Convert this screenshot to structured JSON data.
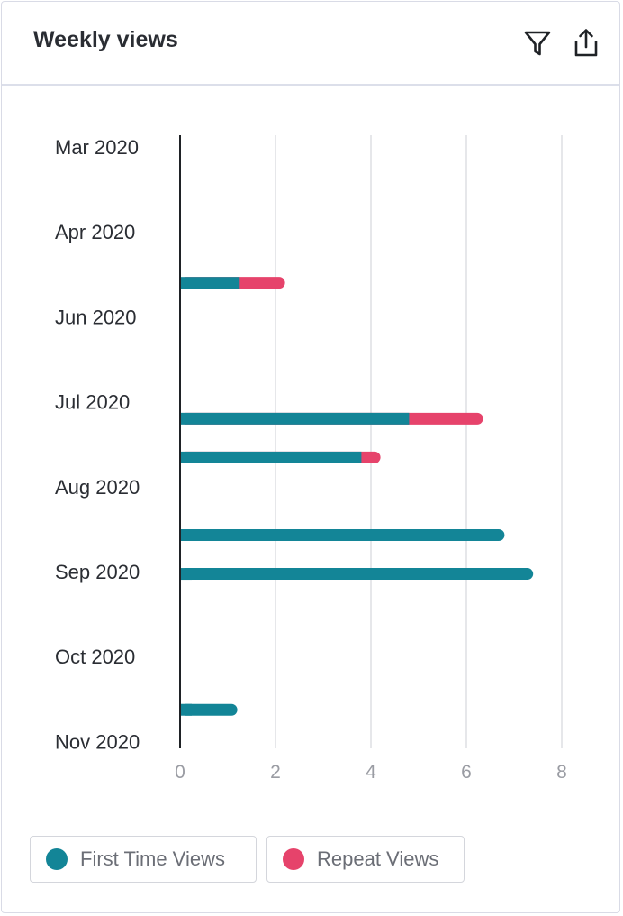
{
  "header": {
    "title": "Weekly views",
    "filter_icon": "filter-icon",
    "export_icon": "share-upload-icon"
  },
  "colors": {
    "first_time": "#138597",
    "repeat": "#e6436b",
    "axis": "#1f2226",
    "grid": "#e6e7ea",
    "tick_text": "#9a9ca3",
    "label_text": "#2a2d33"
  },
  "legend": [
    {
      "label": "First Time Views",
      "color": "#138597"
    },
    {
      "label": "Repeat Views",
      "color": "#e6436b"
    }
  ],
  "chart_data": {
    "type": "bar",
    "orientation": "horizontal",
    "stacked": true,
    "title": "Weekly views",
    "y_axis_type": "time",
    "y_tick_labels": [
      "Mar 2020",
      "Apr 2020",
      "Jun 2020",
      "Jul 2020",
      "Aug 2020",
      "Sep 2020",
      "Oct 2020",
      "Nov 2020"
    ],
    "xlim": [
      0,
      8
    ],
    "x_ticks": [
      0,
      2,
      4,
      6,
      8
    ],
    "grid": "vertical",
    "legend_position": "bottom-left",
    "weeks": [
      "2020-04-19",
      "2020-06-07",
      "2020-06-21",
      "2020-07-19",
      "2020-08-02",
      "2020-09-20"
    ],
    "series": [
      {
        "name": "First Time Views",
        "values": [
          1.25,
          4.8,
          3.8,
          6.8,
          7.4,
          1.2
        ]
      },
      {
        "name": "Repeat Views",
        "values": [
          0.95,
          1.55,
          0.4,
          0,
          0,
          0
        ]
      }
    ]
  }
}
